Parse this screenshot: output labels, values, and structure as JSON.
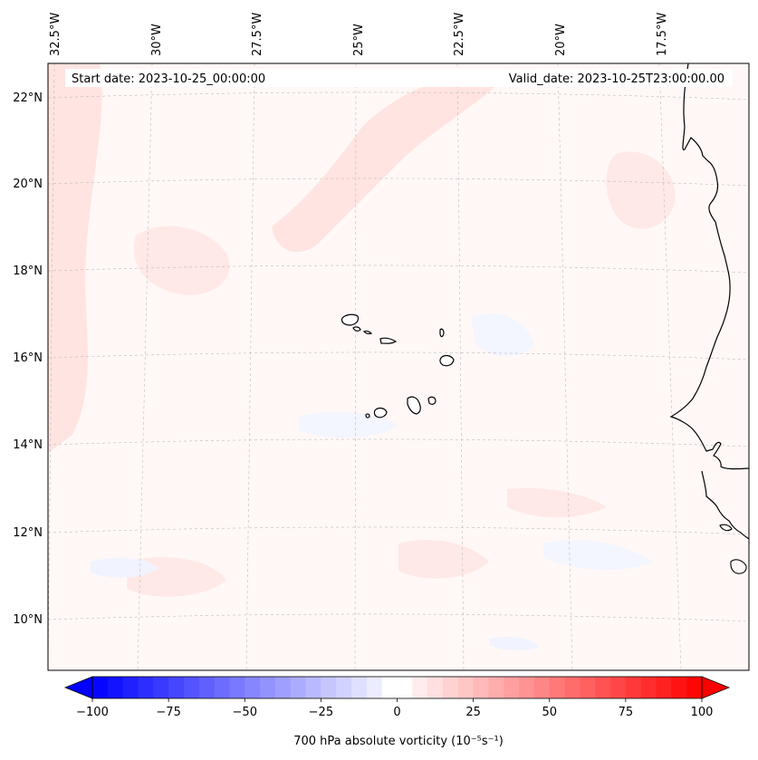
{
  "map": {
    "header": {
      "start_date": "Start date: 2023-10-25_00:00:00",
      "valid_date": "Valid_date: 2023-10-25T23:00:00.00"
    },
    "lon_labels": [
      "32.5°W",
      "30°W",
      "27.5°W",
      "25°W",
      "22.5°W",
      "20°W",
      "17.5°W"
    ],
    "lat_labels": [
      "22°N",
      "20°N",
      "18°N",
      "16°N",
      "14°N",
      "12°N",
      "10°N"
    ],
    "field_name": "700 hPa absolute vorticity",
    "colorbar": {
      "label": "700 hPa absolute vorticity (10⁻⁵s⁻¹)",
      "ticks": [
        "−100",
        "−75",
        "−50",
        "−25",
        "0",
        "25",
        "50",
        "75",
        "100"
      ],
      "min": -100,
      "max": 100
    },
    "colors": {
      "negative": "#0000ff",
      "neutral": "#ffffff",
      "positive": "#ff0000",
      "coastline": "#000000",
      "gridline": "#bbbbbb"
    }
  }
}
